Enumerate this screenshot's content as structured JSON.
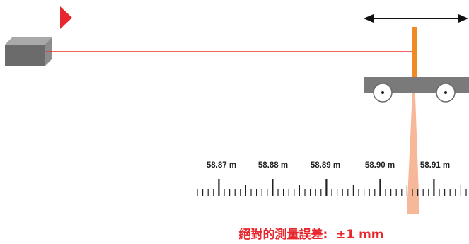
{
  "colors": {
    "laser": "#e63030",
    "arrow": "#e8262d",
    "target": "#f08a24",
    "beam_cone": "#f7b89a",
    "device": "#6b6b6b",
    "device_top": "#a9a9a9",
    "cart": "#7a7a7a",
    "ink": "#222222",
    "caption": "#e8262d"
  },
  "icons": {
    "play_indicator": "play-triangle-icon",
    "motion": "double-arrow-icon",
    "laser_device": "laser-device-icon",
    "cart": "cart-icon"
  },
  "scale": {
    "labels": [
      "58.87 m",
      "58.88 m",
      "58.89 m",
      "58.90 m",
      "58.91 m"
    ]
  },
  "caption": {
    "text": "絕對的測量誤差:  ±1 mm"
  }
}
